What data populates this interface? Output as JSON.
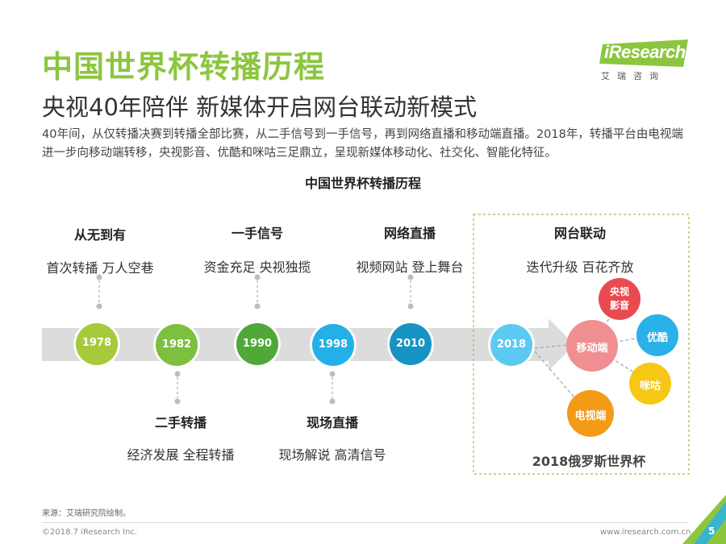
{
  "header": {
    "title": "中国世界杯转播历程",
    "subtitle": "央视40年陪伴 新媒体开启网台联动新模式",
    "description": "40年间，从仅转播决赛到转播全部比赛，从二手信号到一手信号，再到网络直播和移动端直播。2018年，转播平台由电视端进一步向移动端转移，央视影音、优酷和咪咕三足鼎立，呈现新媒体移动化、社交化、智能化特征。"
  },
  "logo": {
    "word": "iResearch",
    "sub": "艾瑞咨询"
  },
  "diagram": {
    "title": "中国世界杯转播历程",
    "timeline": [
      {
        "year": "1978",
        "color": "#a6ca3a",
        "phase": "从无到有",
        "tagline": "首次转播 万人空巷",
        "position": "top"
      },
      {
        "year": "1982",
        "color": "#7dbf3f",
        "phase": "二手转播",
        "tagline": "经济发展 全程转播",
        "position": "bottom"
      },
      {
        "year": "1990",
        "color": "#50a838",
        "phase": "一手信号",
        "tagline": "资金充足 央视独揽",
        "position": "top"
      },
      {
        "year": "1998",
        "color": "#23b0e8",
        "phase": "现场直播",
        "tagline": "现场解说 高清信号",
        "position": "bottom"
      },
      {
        "year": "2010",
        "color": "#1793c4",
        "phase": "网络直播",
        "tagline": "视频网站 登上舞台",
        "position": "top"
      },
      {
        "year": "2018",
        "color": "#5cc9f2",
        "phase": "网台联动",
        "tagline": "迭代升级 百花齐放",
        "position": "top"
      }
    ],
    "network": {
      "hub": {
        "label": "移动端",
        "color": "#f08f92"
      },
      "nodes": [
        {
          "label": "央视影音",
          "color": "#e84b4f"
        },
        {
          "label": "优酷",
          "color": "#29b1e8"
        },
        {
          "label": "咪咕",
          "color": "#f7c716"
        },
        {
          "label": "电视端",
          "color": "#f39a17"
        }
      ],
      "caption": "2018俄罗斯世界杯"
    }
  },
  "footer": {
    "source": "来源：艾瑞研究院绘制。",
    "copyright": "©2018.7 iResearch Inc.",
    "site": "www.iresearch.com.cn",
    "page": "5"
  }
}
